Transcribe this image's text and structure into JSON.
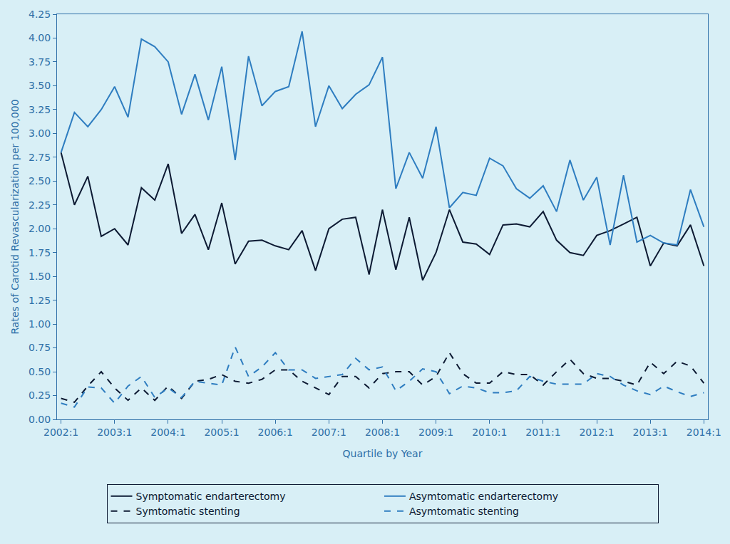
{
  "chart_data": {
    "type": "line",
    "x_label": "Quartile by Year",
    "y_label": "Rates of Carotid Revascularization per 100,000",
    "categories": [
      "2002:1",
      null,
      null,
      null,
      "2003:1",
      null,
      null,
      null,
      "2004:1",
      null,
      null,
      null,
      "2005:1",
      null,
      null,
      null,
      "2006:1",
      null,
      null,
      null,
      "2007:1",
      null,
      null,
      null,
      "2008:1",
      null,
      null,
      null,
      "2009:1",
      null,
      null,
      null,
      "2010:1",
      null,
      null,
      null,
      "2011:1",
      null,
      null,
      null,
      "2012:1",
      null,
      null,
      null,
      "2013:1",
      null,
      null,
      null,
      "2014:1"
    ],
    "series": [
      {
        "name": "Symptomatic endarterectomy",
        "color": "#0d1a33",
        "line_style": "solid",
        "values": [
          2.8,
          2.25,
          2.55,
          1.92,
          2.0,
          1.83,
          2.43,
          2.3,
          2.68,
          1.95,
          2.15,
          1.78,
          2.27,
          1.63,
          1.87,
          1.88,
          1.82,
          1.78,
          1.98,
          1.56,
          2.0,
          2.1,
          2.12,
          1.52,
          2.2,
          1.57,
          2.12,
          1.46,
          1.75,
          2.2,
          1.86,
          1.84,
          1.73,
          2.04,
          2.05,
          2.02,
          2.18,
          1.88,
          1.75,
          1.72,
          1.93,
          1.98,
          2.05,
          2.12,
          1.61,
          1.85,
          1.82,
          2.04,
          1.61
        ]
      },
      {
        "name": "Asymtomatic endarterectomy",
        "color": "#2e7dc0",
        "line_style": "solid",
        "values": [
          2.8,
          3.22,
          3.07,
          3.25,
          3.49,
          3.17,
          3.99,
          3.91,
          3.75,
          3.2,
          3.62,
          3.14,
          3.7,
          2.72,
          3.81,
          3.29,
          3.44,
          3.49,
          4.07,
          3.07,
          3.5,
          3.26,
          3.41,
          3.51,
          3.8,
          2.42,
          2.8,
          2.53,
          3.07,
          2.22,
          2.38,
          2.35,
          2.74,
          2.66,
          2.42,
          2.32,
          2.45,
          2.18,
          2.72,
          2.3,
          2.54,
          1.83,
          2.56,
          1.86,
          1.93,
          1.85,
          1.83,
          2.41,
          2.02
        ]
      },
      {
        "name": "Symtomatic stenting",
        "color": "#0d1a33",
        "line_style": "dash",
        "values": [
          0.22,
          0.18,
          0.35,
          0.5,
          0.33,
          0.2,
          0.33,
          0.2,
          0.35,
          0.22,
          0.4,
          0.42,
          0.47,
          0.4,
          0.38,
          0.42,
          0.52,
          0.52,
          0.4,
          0.33,
          0.26,
          0.45,
          0.45,
          0.33,
          0.48,
          0.5,
          0.5,
          0.36,
          0.45,
          0.7,
          0.48,
          0.38,
          0.38,
          0.5,
          0.47,
          0.47,
          0.36,
          0.5,
          0.63,
          0.48,
          0.43,
          0.43,
          0.4,
          0.36,
          0.6,
          0.48,
          0.61,
          0.56,
          0.38
        ]
      },
      {
        "name": "Asymtomatic stenting",
        "color": "#2e7dc0",
        "line_style": "dash",
        "values": [
          0.17,
          0.13,
          0.34,
          0.33,
          0.17,
          0.35,
          0.45,
          0.23,
          0.33,
          0.23,
          0.4,
          0.38,
          0.36,
          0.76,
          0.45,
          0.55,
          0.7,
          0.52,
          0.52,
          0.43,
          0.45,
          0.47,
          0.64,
          0.52,
          0.55,
          0.3,
          0.4,
          0.53,
          0.5,
          0.27,
          0.35,
          0.33,
          0.28,
          0.28,
          0.3,
          0.45,
          0.4,
          0.37,
          0.37,
          0.37,
          0.48,
          0.45,
          0.36,
          0.3,
          0.26,
          0.35,
          0.29,
          0.24,
          0.28
        ]
      }
    ],
    "ylim": [
      0,
      4.25
    ],
    "yticks": [
      {
        "value": 0,
        "label": "0.00"
      },
      {
        "value": 0.25,
        "label": "0.25"
      },
      {
        "value": 0.5,
        "label": "0.50"
      },
      {
        "value": 0.75,
        "label": "0.75"
      },
      {
        "value": 1,
        "label": "1.00"
      },
      {
        "value": 1.25,
        "label": "1.25"
      },
      {
        "value": 1.5,
        "label": "1.50"
      },
      {
        "value": 1.75,
        "label": "1.75"
      },
      {
        "value": 2,
        "label": "2.00"
      },
      {
        "value": 2.25,
        "label": "2.25"
      },
      {
        "value": 2.5,
        "label": "2.50"
      },
      {
        "value": 2.75,
        "label": "2.75"
      },
      {
        "value": 3,
        "label": "3.00"
      },
      {
        "value": 3.25,
        "label": "3.25"
      },
      {
        "value": 3.5,
        "label": "3.50"
      },
      {
        "value": 3.75,
        "label": "3.75"
      },
      {
        "value": 4,
        "label": "4.00"
      },
      {
        "value": 4.25,
        "label": "4.25"
      }
    ],
    "grid": false,
    "legend": "bottom"
  }
}
